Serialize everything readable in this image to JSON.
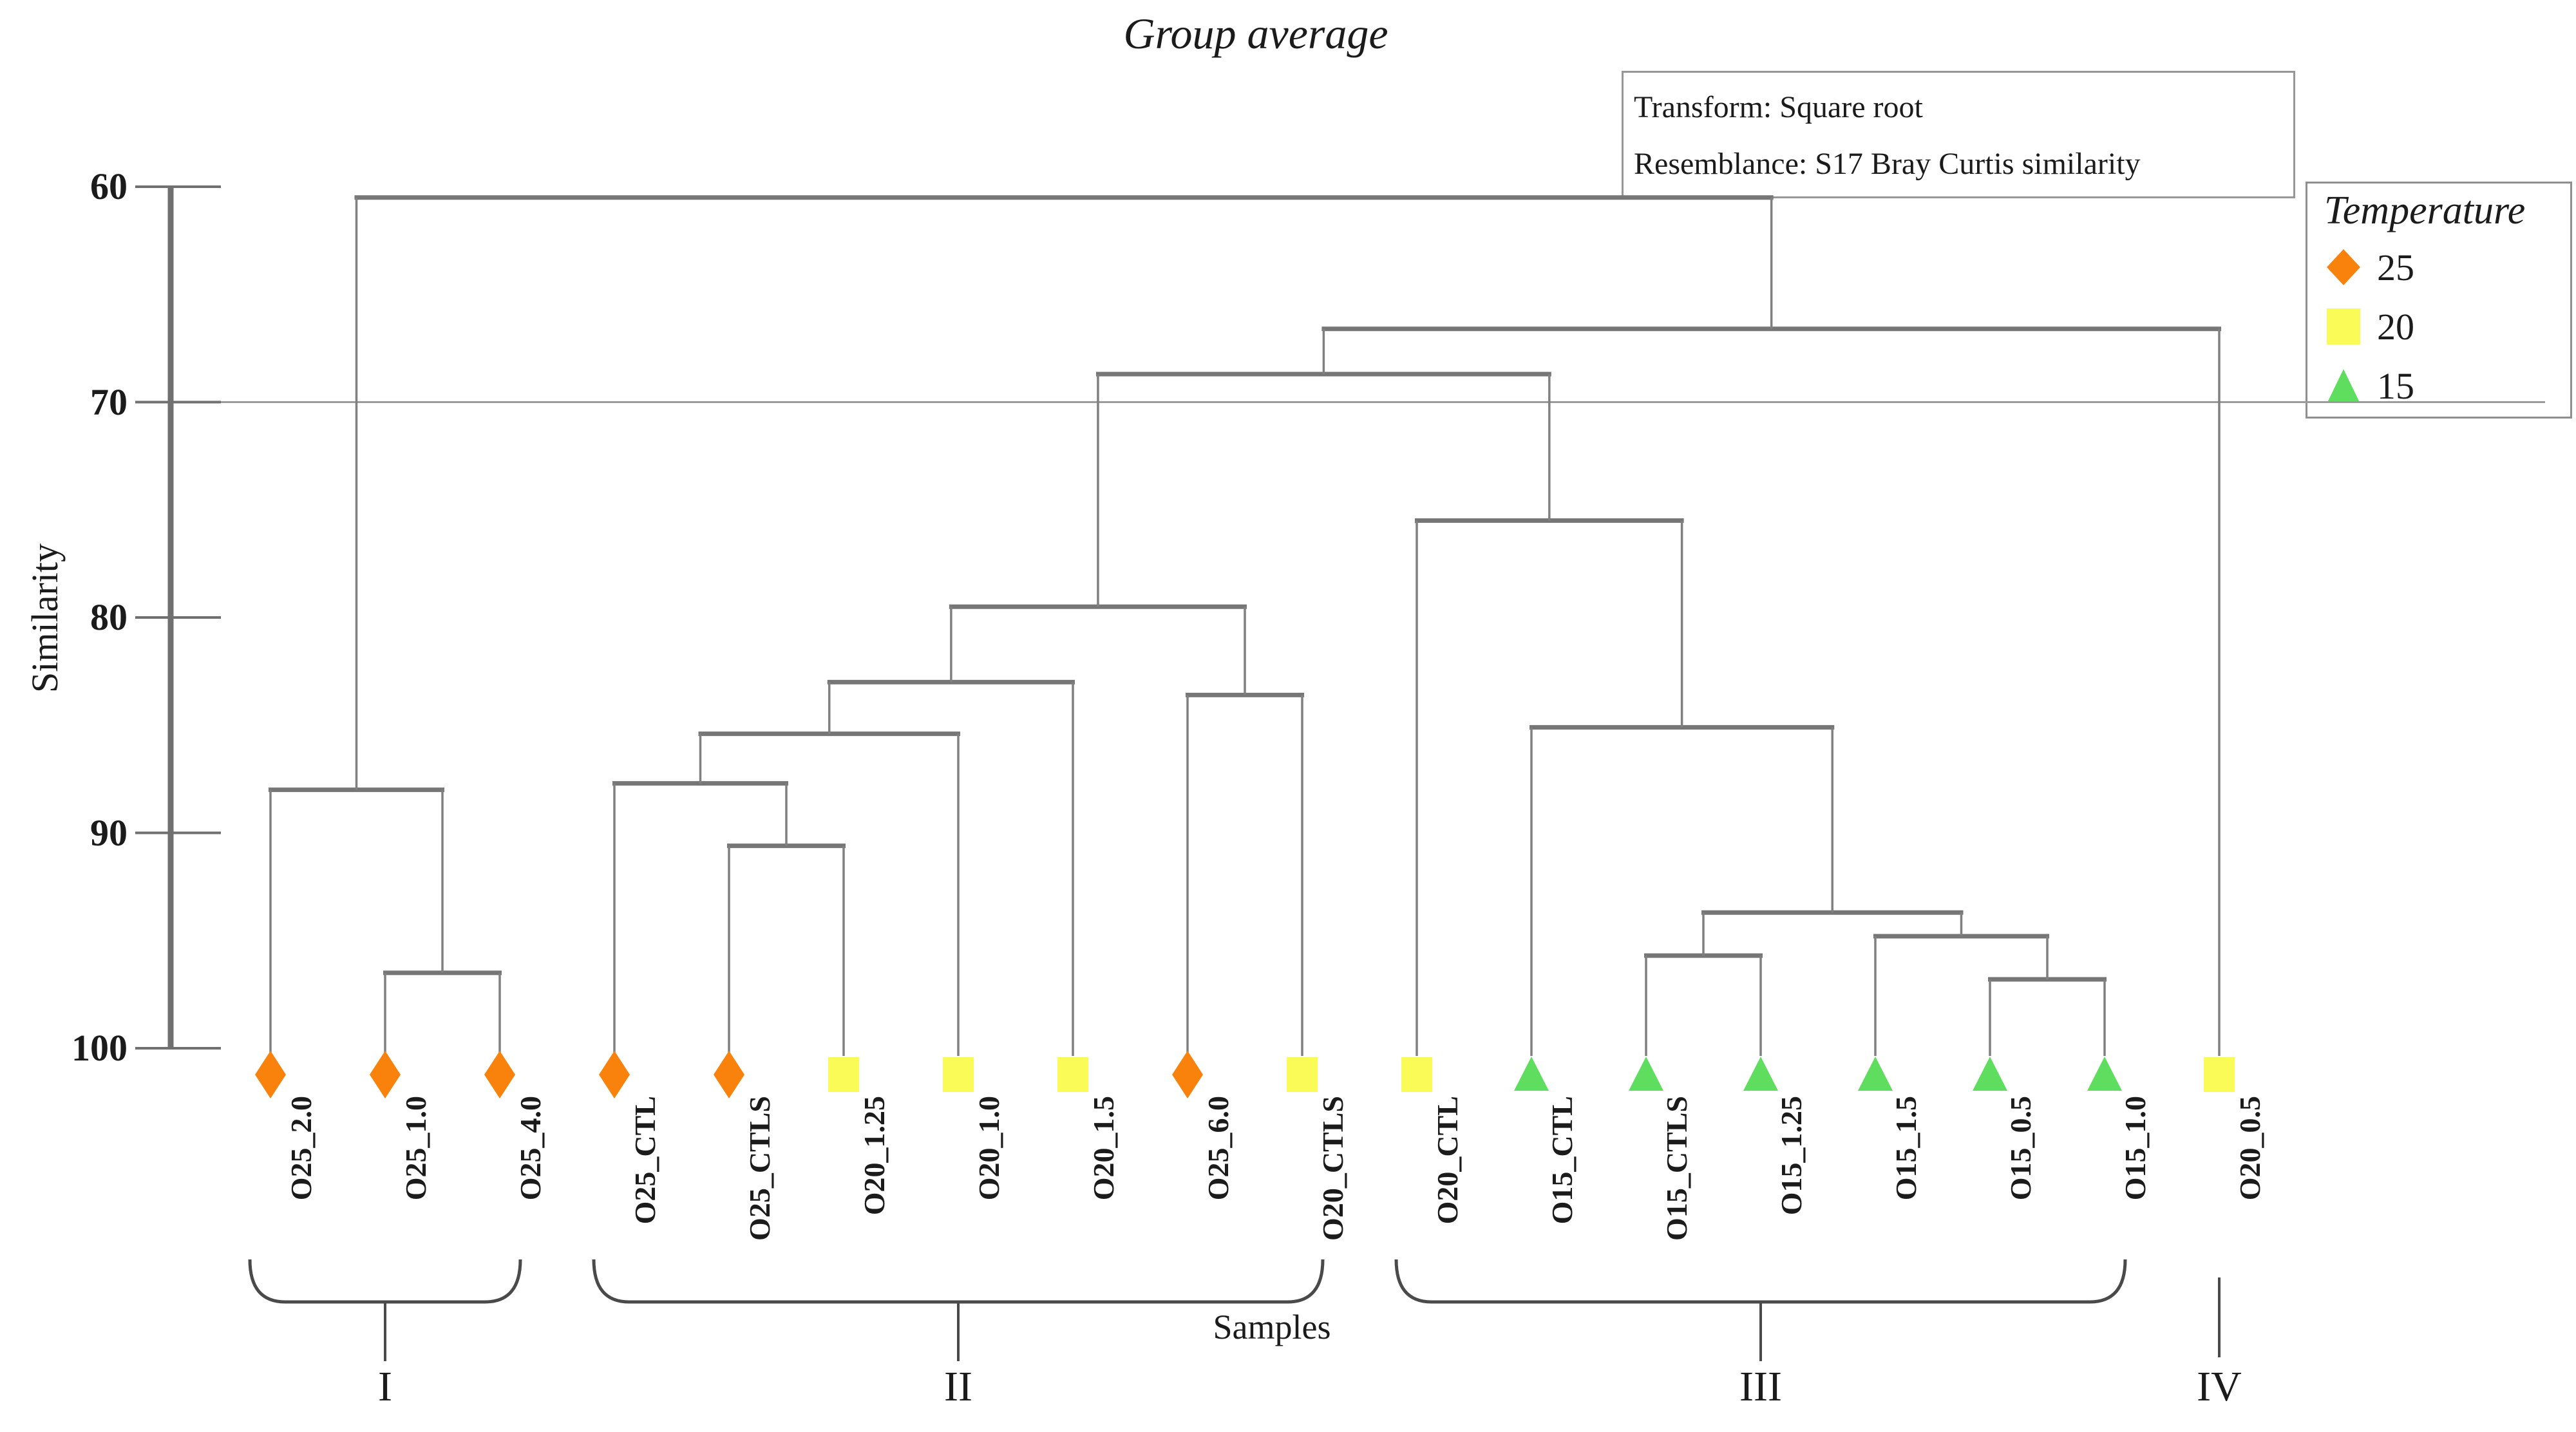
{
  "title": "Group average",
  "info_box": {
    "line1": "Transform: Square root",
    "line2": "Resemblance: S17 Bray Curtis similarity"
  },
  "legend": {
    "title": "Temperature",
    "items": [
      {
        "label": "25",
        "shape": "diamond",
        "color": "#F8820B"
      },
      {
        "label": "20",
        "shape": "square",
        "color": "#FBFB57"
      },
      {
        "label": "15",
        "shape": "triangle",
        "color": "#5FDD5F"
      }
    ]
  },
  "axis": {
    "label": "Similarity",
    "ticks": [
      60,
      70,
      80,
      90,
      100
    ],
    "range": [
      60,
      100
    ]
  },
  "xlabel": "Samples",
  "colors": {
    "tree_line": "#808080",
    "threshold_line": "#9b9b9b",
    "axis_line": "#707070",
    "brace": "#4a4a4a",
    "text": "#1b1b1b"
  },
  "chart_data": {
    "type": "dendrogram",
    "orientation": "top-down",
    "similarity_threshold": 70,
    "ylim": [
      60,
      100
    ],
    "leaves": [
      {
        "name": "O25_2.0",
        "temperature": "25"
      },
      {
        "name": "O25_1.0",
        "temperature": "25"
      },
      {
        "name": "O25_4.0",
        "temperature": "25"
      },
      {
        "name": "O25_CTL",
        "temperature": "25"
      },
      {
        "name": "O25_CTLS",
        "temperature": "25"
      },
      {
        "name": "O20_1.25",
        "temperature": "20"
      },
      {
        "name": "O20_1.0",
        "temperature": "20"
      },
      {
        "name": "O20_1.5",
        "temperature": "20"
      },
      {
        "name": "O25_6.0",
        "temperature": "25"
      },
      {
        "name": "O20_CTLS",
        "temperature": "20"
      },
      {
        "name": "O20_CTL",
        "temperature": "20"
      },
      {
        "name": "O15_CTL",
        "temperature": "15"
      },
      {
        "name": "O15_CTLS",
        "temperature": "15"
      },
      {
        "name": "O15_1.25",
        "temperature": "15"
      },
      {
        "name": "O15_1.5",
        "temperature": "15"
      },
      {
        "name": "O15_0.5",
        "temperature": "15"
      },
      {
        "name": "O15_1.0",
        "temperature": "15"
      },
      {
        "name": "O20_0.5",
        "temperature": "20"
      }
    ],
    "merges": {
      "height": 60.5,
      "children": [
        {
          "height": 88.0,
          "children": [
            {
              "leaf": 0
            },
            {
              "height": 96.5,
              "children": [
                {
                  "leaf": 1
                },
                {
                  "leaf": 2
                }
              ]
            }
          ]
        },
        {
          "height": 66.6,
          "children": [
            {
              "height": 68.7,
              "children": [
                {
                  "height": 79.5,
                  "children": [
                    {
                      "height": 83.0,
                      "children": [
                        {
                          "height": 85.4,
                          "children": [
                            {
                              "height": 87.7,
                              "children": [
                                {
                                  "leaf": 3
                                },
                                {
                                  "height": 90.6,
                                  "children": [
                                    {
                                      "leaf": 4
                                    },
                                    {
                                      "leaf": 5
                                    }
                                  ]
                                }
                              ]
                            },
                            {
                              "leaf": 6
                            }
                          ]
                        },
                        {
                          "leaf": 7
                        }
                      ]
                    },
                    {
                      "height": 83.6,
                      "children": [
                        {
                          "leaf": 8
                        },
                        {
                          "leaf": 9
                        }
                      ]
                    }
                  ]
                },
                {
                  "height": 75.5,
                  "children": [
                    {
                      "leaf": 10
                    },
                    {
                      "height": 85.1,
                      "children": [
                        {
                          "leaf": 11
                        },
                        {
                          "height": 93.7,
                          "children": [
                            {
                              "height": 95.7,
                              "children": [
                                {
                                  "leaf": 12
                                },
                                {
                                  "leaf": 13
                                }
                              ]
                            },
                            {
                              "height": 94.8,
                              "children": [
                                {
                                  "leaf": 14
                                },
                                {
                                  "height": 96.8,
                                  "children": [
                                    {
                                      "leaf": 15
                                    },
                                    {
                                      "leaf": 16
                                    }
                                  ]
                                }
                              ]
                            }
                          ]
                        }
                      ]
                    }
                  ]
                }
              ]
            },
            {
              "leaf": 17
            }
          ]
        }
      ]
    },
    "groups": [
      {
        "label": "I",
        "from": 0,
        "to": 2
      },
      {
        "label": "II",
        "from": 3,
        "to": 9
      },
      {
        "label": "III",
        "from": 10,
        "to": 16
      },
      {
        "label": "IV",
        "from": 17,
        "to": 17
      }
    ]
  }
}
